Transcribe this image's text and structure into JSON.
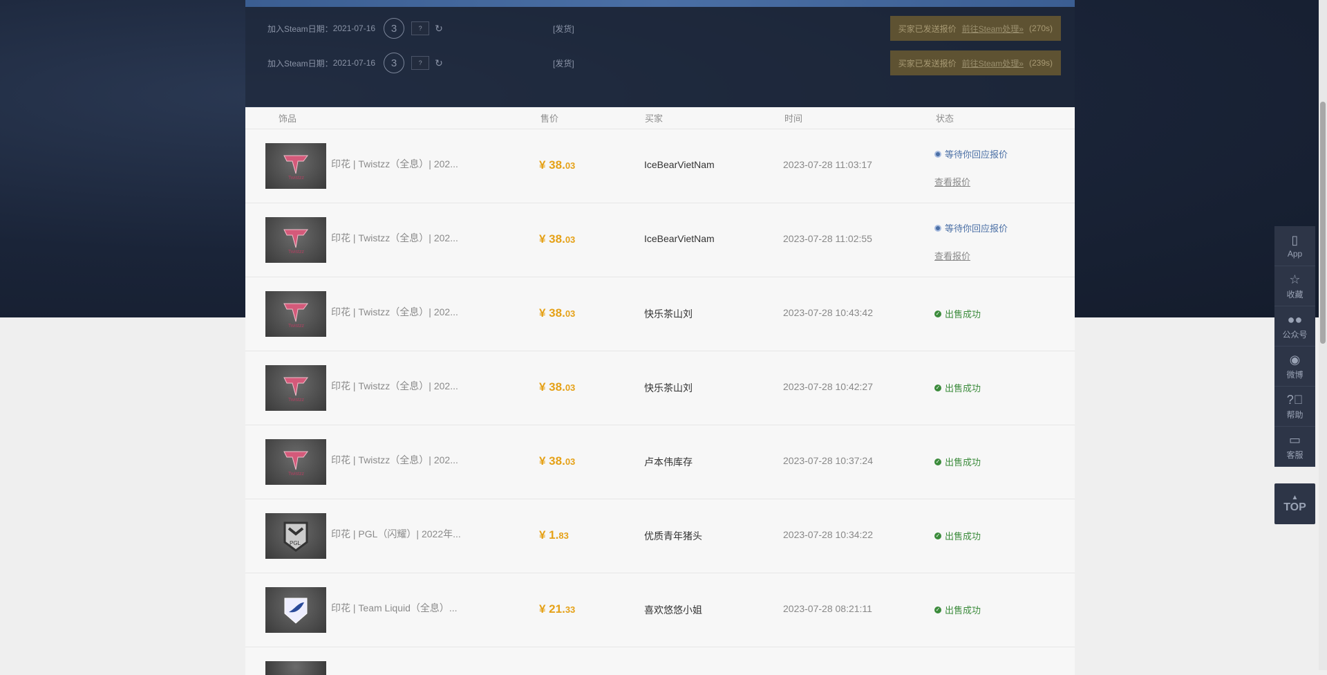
{
  "offers": [
    {
      "join_label": "加入Steam日期：",
      "join_date": "2021-07-16",
      "level": "3",
      "badge": "?",
      "ship": "[发货]",
      "notice": "买家已发送报价",
      "link": "前往Steam处理»",
      "countdown": "(270s)"
    },
    {
      "join_label": "加入Steam日期：",
      "join_date": "2021-07-16",
      "level": "3",
      "badge": "?",
      "ship": "[发货]",
      "notice": "买家已发送报价",
      "link": "前往Steam处理»",
      "countdown": "(239s)"
    }
  ],
  "table": {
    "headers": {
      "item": "饰品",
      "price": "售价",
      "buyer": "买家",
      "time": "时间",
      "status": "状态"
    },
    "rows": [
      {
        "name": "印花 | Twistzz（全息）| 202...",
        "price_int": "¥ 38.",
        "price_dec": "03",
        "buyer": "IceBearVietNam",
        "time": "2023-07-28 11:03:17",
        "status": "等待你回应报价",
        "status_type": "wait",
        "link": "查看报价",
        "icon": "faze-sticker"
      },
      {
        "name": "印花 | Twistzz（全息）| 202...",
        "price_int": "¥ 38.",
        "price_dec": "03",
        "buyer": "IceBearVietNam",
        "time": "2023-07-28 11:02:55",
        "status": "等待你回应报价",
        "status_type": "wait",
        "link": "查看报价",
        "icon": "faze-sticker"
      },
      {
        "name": "印花 | Twistzz（全息）| 202...",
        "price_int": "¥ 38.",
        "price_dec": "03",
        "buyer": "快乐茶山刘",
        "time": "2023-07-28 10:43:42",
        "status": "出售成功",
        "status_type": "ok",
        "icon": "faze-sticker"
      },
      {
        "name": "印花 | Twistzz（全息）| 202...",
        "price_int": "¥ 38.",
        "price_dec": "03",
        "buyer": "快乐茶山刘",
        "time": "2023-07-28 10:42:27",
        "status": "出售成功",
        "status_type": "ok",
        "icon": "faze-sticker"
      },
      {
        "name": "印花 | Twistzz（全息）| 202...",
        "price_int": "¥ 38.",
        "price_dec": "03",
        "buyer": "卢本伟库存",
        "time": "2023-07-28 10:37:24",
        "status": "出售成功",
        "status_type": "ok",
        "icon": "faze-sticker"
      },
      {
        "name": "印花 | PGL（闪耀）| 2022年...",
        "price_int": "¥ 1.",
        "price_dec": "83",
        "buyer": "优质青年猪头",
        "time": "2023-07-28 10:34:22",
        "status": "出售成功",
        "status_type": "ok",
        "icon": "pgl-sticker"
      },
      {
        "name": "印花 | Team Liquid（全息）...",
        "price_int": "¥ 21.",
        "price_dec": "33",
        "buyer": "喜欢悠悠小姐",
        "time": "2023-07-28 08:21:11",
        "status": "出售成功",
        "status_type": "ok",
        "icon": "liquid-sticker"
      }
    ]
  },
  "side": {
    "items": [
      {
        "label": "App",
        "icon": "phone-icon"
      },
      {
        "label": "收藏",
        "icon": "star-icon"
      },
      {
        "label": "公众号",
        "icon": "wechat-icon"
      },
      {
        "label": "微博",
        "icon": "weibo-icon"
      },
      {
        "label": "帮助",
        "icon": "help-icon"
      },
      {
        "label": "客服",
        "icon": "chat-icon"
      }
    ],
    "top": "TOP"
  },
  "colors": {
    "price": "#e5a117",
    "success": "#3b8b3b",
    "waiting": "#4a6fa5",
    "sidebar": "#2d3547"
  }
}
